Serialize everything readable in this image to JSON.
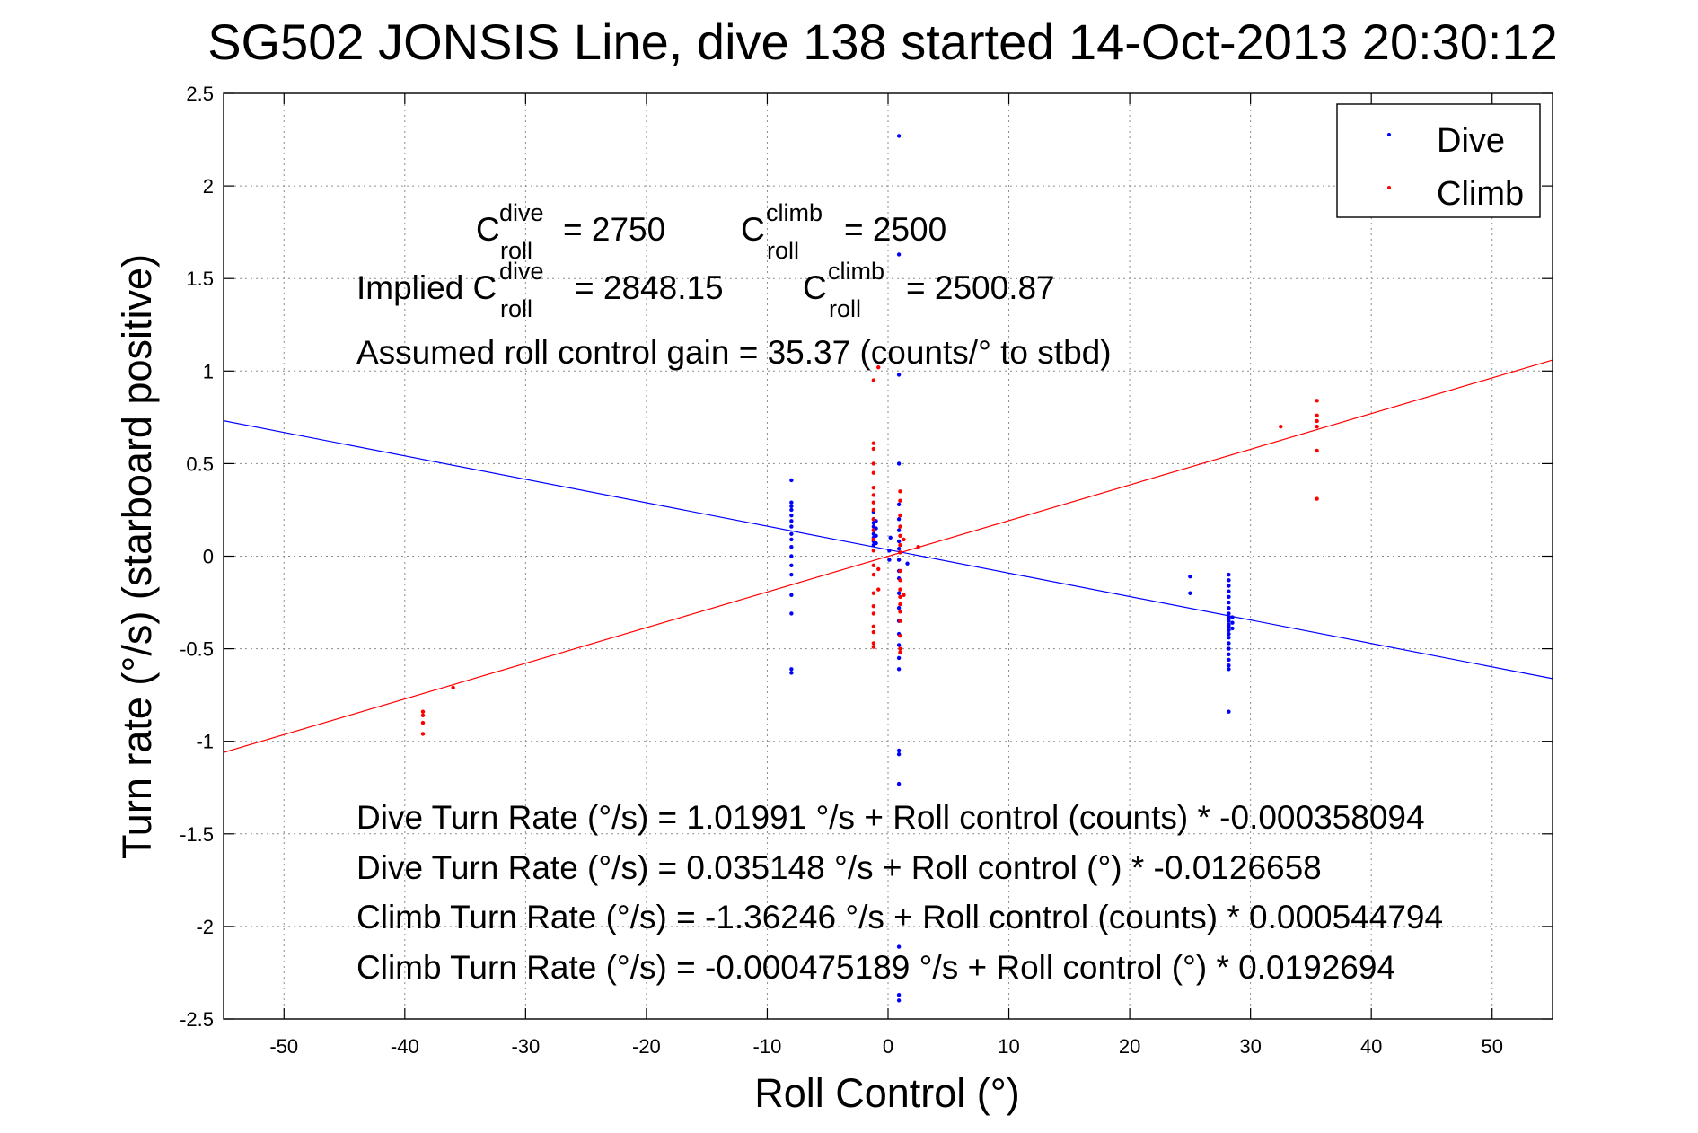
{
  "chart_data": {
    "type": "scatter",
    "title": "SG502 JONSIS Line, dive 138 started 14-Oct-2013 20:30:12",
    "xlabel": "Roll Control (°)",
    "ylabel": "Turn rate (°/s) (starboard positive)",
    "xlim": [
      -55,
      55
    ],
    "ylim": [
      -2.5,
      2.5
    ],
    "xticks": [
      -50,
      -40,
      -30,
      -20,
      -10,
      0,
      10,
      20,
      30,
      40,
      50
    ],
    "yticks": [
      2.5,
      2,
      1.5,
      1,
      0.5,
      0,
      -0.5,
      -1,
      -1.5,
      -2,
      -2.5
    ],
    "xtick_labels": [
      "-50",
      "-40",
      "-30",
      "-20",
      "-10",
      "0",
      "10",
      "20",
      "30",
      "40",
      "50"
    ],
    "ytick_labels": [
      "2.5",
      "2",
      "1.5",
      "1",
      "0.5",
      "0",
      "-0.5",
      "-1",
      "-1.5",
      "-2",
      "-2.5"
    ],
    "grid": true,
    "legend_position": "top-right",
    "series": [
      {
        "name": "Dive",
        "color": "#0000ff",
        "points": [
          [
            -8,
            0.41
          ],
          [
            -8,
            0.29
          ],
          [
            -8,
            0.27
          ],
          [
            -8,
            0.25
          ],
          [
            -8,
            0.22
          ],
          [
            -8,
            0.19
          ],
          [
            -8,
            0.16
          ],
          [
            -8,
            0.12
          ],
          [
            -8,
            0.09
          ],
          [
            -8,
            0.05
          ],
          [
            -8,
            0.0
          ],
          [
            -8,
            -0.05
          ],
          [
            -8,
            -0.1
          ],
          [
            -8,
            -0.21
          ],
          [
            -8,
            -0.31
          ],
          [
            -8,
            -0.61
          ],
          [
            -8,
            -0.63
          ],
          [
            -1.2,
            0.24
          ],
          [
            -1.2,
            0.2
          ],
          [
            -1.2,
            0.18
          ],
          [
            -1.2,
            0.16
          ],
          [
            -1.2,
            0.14
          ],
          [
            -1.2,
            0.12
          ],
          [
            -1.2,
            0.1
          ],
          [
            -1.2,
            0.08
          ],
          [
            -1.2,
            0.06
          ],
          [
            -1.0,
            0.19
          ],
          [
            -1.0,
            0.15
          ],
          [
            -1.0,
            0.11
          ],
          [
            -1.0,
            0.07
          ],
          [
            0.1,
            0.03
          ],
          [
            0.1,
            -0.02
          ],
          [
            0.2,
            0.1
          ],
          [
            0.9,
            2.27
          ],
          [
            0.9,
            1.63
          ],
          [
            0.9,
            0.98
          ],
          [
            0.9,
            0.5
          ],
          [
            0.9,
            0.28
          ],
          [
            0.9,
            0.2
          ],
          [
            0.9,
            0.14
          ],
          [
            0.9,
            0.08
          ],
          [
            0.9,
            0.04
          ],
          [
            0.9,
            -0.02
          ],
          [
            0.9,
            -0.08
          ],
          [
            0.9,
            -0.12
          ],
          [
            0.9,
            -0.2
          ],
          [
            0.9,
            -0.28
          ],
          [
            0.9,
            -0.35
          ],
          [
            0.9,
            -0.42
          ],
          [
            0.9,
            -0.48
          ],
          [
            0.9,
            -0.55
          ],
          [
            0.9,
            -0.61
          ],
          [
            0.9,
            -1.05
          ],
          [
            0.9,
            -1.07
          ],
          [
            0.9,
            -1.23
          ],
          [
            0.9,
            -2.11
          ],
          [
            0.9,
            -2.37
          ],
          [
            0.9,
            -2.4
          ],
          [
            1.6,
            -0.04
          ],
          [
            25,
            -0.11
          ],
          [
            25,
            -0.2
          ],
          [
            28.2,
            -0.1
          ],
          [
            28.2,
            -0.13
          ],
          [
            28.2,
            -0.16
          ],
          [
            28.2,
            -0.19
          ],
          [
            28.2,
            -0.22
          ],
          [
            28.2,
            -0.25
          ],
          [
            28.2,
            -0.28
          ],
          [
            28.2,
            -0.31
          ],
          [
            28.2,
            -0.33
          ],
          [
            28.2,
            -0.35
          ],
          [
            28.2,
            -0.37
          ],
          [
            28.2,
            -0.38
          ],
          [
            28.2,
            -0.4
          ],
          [
            28.2,
            -0.42
          ],
          [
            28.2,
            -0.44
          ],
          [
            28.2,
            -0.47
          ],
          [
            28.2,
            -0.5
          ],
          [
            28.2,
            -0.53
          ],
          [
            28.2,
            -0.56
          ],
          [
            28.2,
            -0.59
          ],
          [
            28.2,
            -0.61
          ],
          [
            28.2,
            -0.84
          ],
          [
            28.5,
            -0.33
          ],
          [
            28.5,
            -0.36
          ],
          [
            28.5,
            -0.39
          ]
        ],
        "fit": {
          "intercept": 0.035148,
          "slope": -0.0126658
        }
      },
      {
        "name": "Climb",
        "color": "#ff0000",
        "points": [
          [
            -38.5,
            -0.84
          ],
          [
            -38.5,
            -0.86
          ],
          [
            -38.5,
            -0.9
          ],
          [
            -38.5,
            -0.96
          ],
          [
            -36,
            -0.71
          ],
          [
            -1.2,
            0.95
          ],
          [
            -1.2,
            0.61
          ],
          [
            -1.2,
            0.58
          ],
          [
            -1.2,
            0.5
          ],
          [
            -1.2,
            0.45
          ],
          [
            -1.2,
            0.37
          ],
          [
            -1.2,
            0.33
          ],
          [
            -1.2,
            0.29
          ],
          [
            -1.2,
            0.25
          ],
          [
            -1.2,
            0.2
          ],
          [
            -1.2,
            0.14
          ],
          [
            -1.2,
            0.09
          ],
          [
            -1.2,
            0.03
          ],
          [
            -1.2,
            -0.05
          ],
          [
            -1.2,
            -0.1
          ],
          [
            -1.2,
            -0.2
          ],
          [
            -1.2,
            -0.27
          ],
          [
            -1.2,
            -0.31
          ],
          [
            -1.2,
            -0.38
          ],
          [
            -1.2,
            -0.41
          ],
          [
            -1.2,
            -0.47
          ],
          [
            -1.2,
            -0.49
          ],
          [
            -0.8,
            1.02
          ],
          [
            -0.8,
            -0.07
          ],
          [
            -0.8,
            -0.18
          ],
          [
            1.0,
            0.35
          ],
          [
            1.0,
            0.3
          ],
          [
            1.0,
            0.22
          ],
          [
            1.0,
            0.16
          ],
          [
            1.0,
            0.11
          ],
          [
            1.0,
            0.06
          ],
          [
            1.0,
            0.02
          ],
          [
            1.0,
            -0.08
          ],
          [
            1.0,
            -0.13
          ],
          [
            1.0,
            -0.18
          ],
          [
            1.0,
            -0.22
          ],
          [
            1.0,
            -0.26
          ],
          [
            1.0,
            -0.3
          ],
          [
            1.0,
            -0.35
          ],
          [
            1.0,
            -0.43
          ],
          [
            1.0,
            -0.5
          ],
          [
            1.0,
            -0.52
          ],
          [
            1.3,
            0.09
          ],
          [
            1.3,
            -0.21
          ],
          [
            2.5,
            0.05
          ],
          [
            32.5,
            0.7
          ],
          [
            35.5,
            0.84
          ],
          [
            35.5,
            0.76
          ],
          [
            35.5,
            0.73
          ],
          [
            35.5,
            0.7
          ],
          [
            35.5,
            0.57
          ],
          [
            35.5,
            0.31
          ]
        ],
        "fit": {
          "intercept": -0.000475189,
          "slope": 0.0192694
        }
      }
    ],
    "annotations": {
      "c_dive_sup": "dive",
      "c_climb_sup": "climb",
      "c_sub": "roll",
      "c_letter": "C",
      "c_dive_value": "= 2750",
      "c_climb_value": "= 2500",
      "implied_prefix": "Implied C",
      "implied_dive_value": "= 2848.15",
      "implied_climb_value": "= 2500.87",
      "gain": "Assumed roll control gain = 35.37 (counts/° to stbd)",
      "eq1": "Dive Turn Rate (°/s) = 1.01991 °/s + Roll control (counts) * -0.000358094",
      "eq2": "Dive Turn Rate (°/s) = 0.035148 °/s + Roll control (°) * -0.0126658",
      "eq3": "Climb Turn Rate (°/s) = -1.36246 °/s + Roll control (counts) * 0.000544794",
      "eq4": "Climb Turn Rate (°/s) = -0.000475189 °/s + Roll control (°) * 0.0192694"
    }
  }
}
